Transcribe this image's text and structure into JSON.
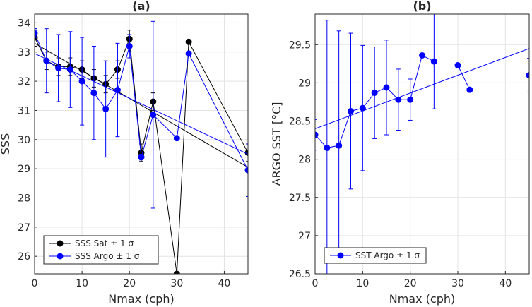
{
  "chart_data": [
    {
      "type": "line",
      "title": "(a)",
      "xlabel": "Nmax (cph)",
      "ylabel": "SSS",
      "xlim": [
        0,
        45
      ],
      "ylim": [
        25.4,
        34.3
      ],
      "xticks": [
        0,
        10,
        20,
        30,
        40
      ],
      "yticks": [
        26,
        27,
        28,
        29,
        30,
        31,
        32,
        33,
        34
      ],
      "grid": true,
      "legend_position": "bottom-left",
      "series": [
        {
          "name": "SSS Sat ± 1 σ",
          "color": "#000000",
          "x": [
            0,
            2.5,
            5,
            7.5,
            10,
            12.5,
            15,
            17.5,
            20,
            22.5,
            25,
            30,
            32.5,
            45
          ],
          "y": [
            33.5,
            32.7,
            32.5,
            32.5,
            32.4,
            32.1,
            31.9,
            32.4,
            33.45,
            29.55,
            31.3,
            25.4,
            33.35,
            29.55
          ],
          "err": [
            0.3,
            0.3,
            0.3,
            0.3,
            0.3,
            0.3,
            0.3,
            0.3,
            0.3,
            0.3,
            0.3,
            0,
            0,
            0.3
          ],
          "trend": [
            33.3,
            29.05
          ]
        },
        {
          "name": "SSS Argo ± 1 σ",
          "color": "#0000ff",
          "x": [
            0,
            2.5,
            5,
            7.5,
            10,
            12.5,
            15,
            17.5,
            20,
            22.5,
            25,
            30,
            32.5,
            45
          ],
          "y": [
            33.65,
            32.7,
            32.45,
            32.4,
            32.0,
            31.6,
            31.05,
            31.7,
            33.2,
            29.4,
            30.85,
            30.05,
            32.95,
            28.95
          ],
          "err": [
            0.15,
            1.1,
            1.15,
            1.3,
            1.5,
            1.6,
            1.65,
            1.6,
            0.4,
            0.1,
            3.2,
            0,
            0,
            0.9
          ],
          "trend": [
            32.95,
            29.5
          ]
        }
      ]
    },
    {
      "type": "line",
      "title": "(b)",
      "xlabel": "Nmax (cph)",
      "ylabel": "ARGO SST [°C]",
      "xlim": [
        0,
        45
      ],
      "ylim": [
        26.5,
        29.9
      ],
      "xticks": [
        0,
        10,
        20,
        30,
        40
      ],
      "yticks": [
        26.5,
        27,
        27.5,
        28,
        28.5,
        29,
        29.5
      ],
      "grid": true,
      "legend_position": "bottom-left",
      "series": [
        {
          "name": "SST Argo ± 1 σ",
          "color": "#0000ff",
          "x": [
            0,
            2.5,
            5,
            7.5,
            10,
            12.5,
            15,
            17.5,
            20,
            22.5,
            25,
            30,
            32.5,
            45
          ],
          "y": [
            28.32,
            28.15,
            28.18,
            28.63,
            28.67,
            28.87,
            28.94,
            28.78,
            28.78,
            29.36,
            29.28,
            29.23,
            28.91,
            29.1
          ],
          "err": [
            0.2,
            1.67,
            1.5,
            1.02,
            0.82,
            0.6,
            0.62,
            0.4,
            0.27,
            0,
            0.62,
            0,
            0,
            0.22
          ],
          "trend": [
            28.4,
            29.45
          ]
        }
      ]
    }
  ]
}
